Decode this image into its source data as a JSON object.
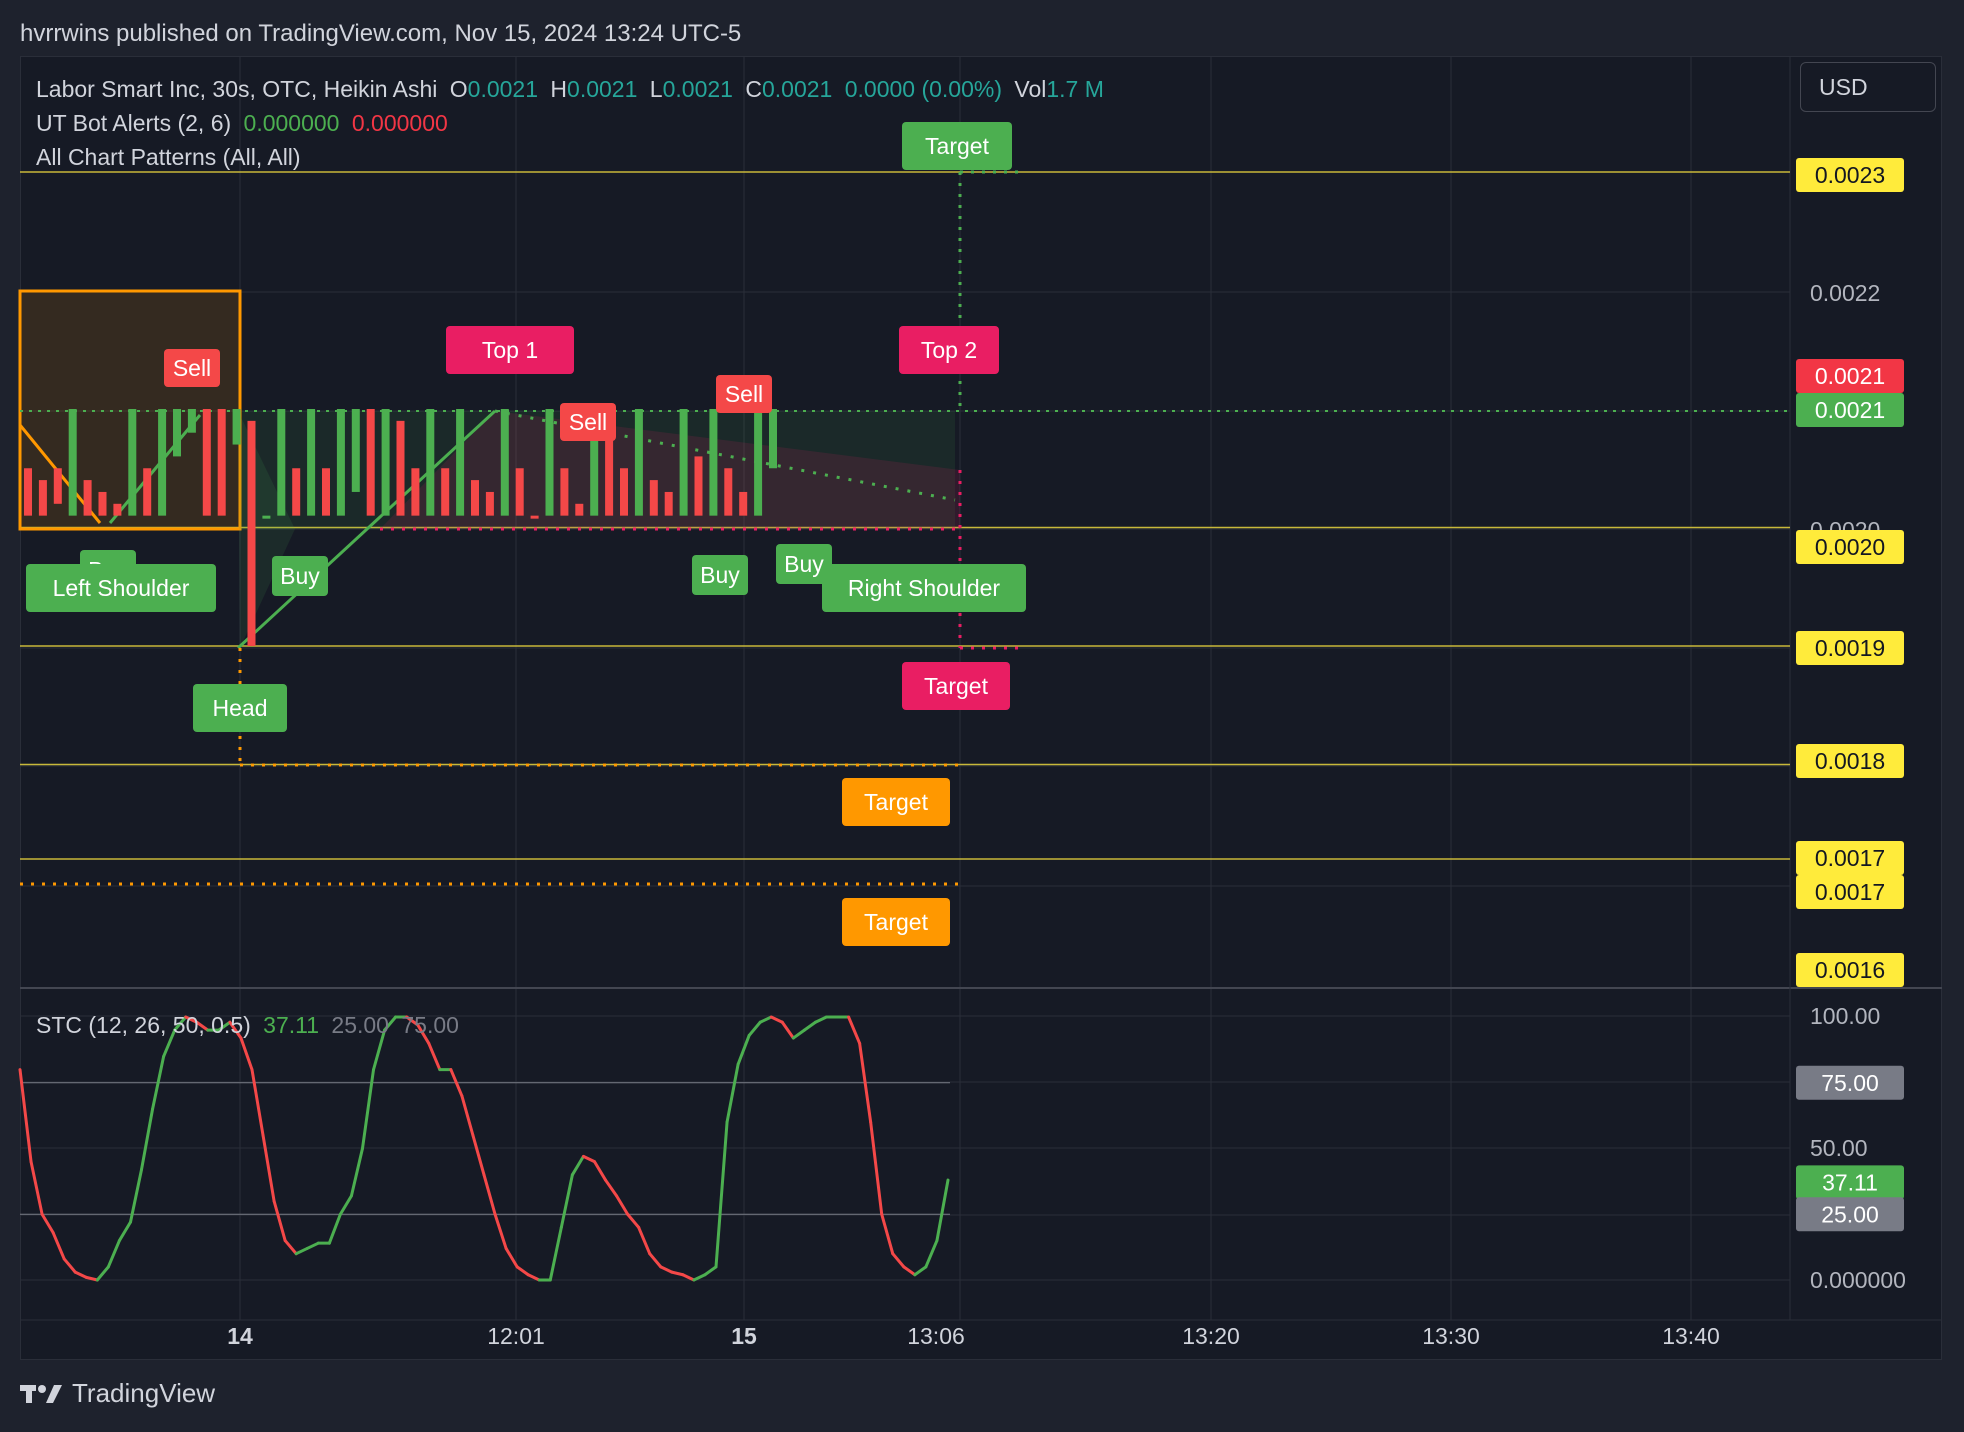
{
  "header": {
    "published": "hvrrwins published on TradingView.com, Nov 15, 2024 13:24 UTC-5"
  },
  "legend": {
    "symbol": "Labor Smart Inc, 30s, OTC, Heikin Ashi",
    "o_label": "O",
    "o_value": "0.0021",
    "h_label": "H",
    "h_value": "0.0021",
    "l_label": "L",
    "l_value": "0.0021",
    "c_label": "C",
    "c_value": "0.0021",
    "change": "0.0000 (0.00%)",
    "vol_label": "Vol",
    "vol_value": "1.7 M",
    "ut_name": "UT Bot Alerts (2, 6)",
    "ut_v1": "0.000000",
    "ut_v2": "0.000000",
    "patterns": "All Chart Patterns (All, All)",
    "stc_name": "STC (12, 26, 50, 0.5)",
    "stc_v1": "37.11",
    "stc_v2": "25.00",
    "stc_v3": "75.00"
  },
  "currency": "USD",
  "footer": {
    "brand": "TradingView"
  },
  "colors": {
    "up": "#4caf50",
    "down": "#f44848",
    "pattern_green": "#4caf50",
    "pattern_pink": "#e91e63",
    "pattern_orange": "#ff9800",
    "level_yellow": "#ffeb3b"
  },
  "chart_data": [
    {
      "type": "candlestick",
      "title": "Labor Smart Inc, 30s, OTC, Heikin Ashi",
      "x_tick_labels": [
        "14",
        "12:01",
        "15",
        "13:06",
        "13:20",
        "13:30",
        "13:40"
      ],
      "y_tick_labels": [
        "0.0022",
        "0.0020"
      ],
      "ylim": [
        0.00157,
        0.00237
      ],
      "candles": [
        {
          "i": 0,
          "o": 0.00205,
          "c": 0.00201,
          "d": "down"
        },
        {
          "i": 1,
          "o": 0.00204,
          "c": 0.00201,
          "d": "down"
        },
        {
          "i": 2,
          "o": 0.00205,
          "c": 0.00202,
          "d": "down"
        },
        {
          "i": 3,
          "o": 0.00201,
          "c": 0.0021,
          "d": "up"
        },
        {
          "i": 4,
          "o": 0.00204,
          "c": 0.00201,
          "d": "down"
        },
        {
          "i": 5,
          "o": 0.00203,
          "c": 0.00201,
          "d": "down"
        },
        {
          "i": 6,
          "o": 0.00202,
          "c": 0.00201,
          "d": "down"
        },
        {
          "i": 7,
          "o": 0.00201,
          "c": 0.0021,
          "d": "up"
        },
        {
          "i": 8,
          "o": 0.00205,
          "c": 0.00201,
          "d": "down"
        },
        {
          "i": 9,
          "o": 0.00201,
          "c": 0.0021,
          "d": "up"
        },
        {
          "i": 10,
          "o": 0.00206,
          "c": 0.0021,
          "d": "up"
        },
        {
          "i": 11,
          "o": 0.00208,
          "c": 0.0021,
          "d": "up"
        },
        {
          "i": 12,
          "o": 0.0021,
          "c": 0.00201,
          "d": "down"
        },
        {
          "i": 13,
          "o": 0.0021,
          "c": 0.00201,
          "d": "down"
        },
        {
          "i": 14,
          "o": 0.00207,
          "c": 0.0021,
          "d": "up"
        },
        {
          "i": 15,
          "o": 0.00209,
          "c": 0.0019,
          "d": "down"
        },
        {
          "i": 16,
          "o": 0.00201,
          "c": 0.00201,
          "d": "up"
        },
        {
          "i": 17,
          "o": 0.00201,
          "c": 0.0021,
          "d": "up"
        },
        {
          "i": 18,
          "o": 0.00205,
          "c": 0.00201,
          "d": "down"
        },
        {
          "i": 19,
          "o": 0.00201,
          "c": 0.0021,
          "d": "up"
        },
        {
          "i": 20,
          "o": 0.00205,
          "c": 0.00201,
          "d": "down"
        },
        {
          "i": 21,
          "o": 0.00201,
          "c": 0.0021,
          "d": "up"
        },
        {
          "i": 22,
          "o": 0.00203,
          "c": 0.0021,
          "d": "up"
        },
        {
          "i": 23,
          "o": 0.0021,
          "c": 0.00201,
          "d": "down"
        },
        {
          "i": 24,
          "o": 0.00201,
          "c": 0.0021,
          "d": "up"
        },
        {
          "i": 25,
          "o": 0.00209,
          "c": 0.00201,
          "d": "down"
        },
        {
          "i": 26,
          "o": 0.00205,
          "c": 0.00201,
          "d": "down"
        },
        {
          "i": 27,
          "o": 0.00201,
          "c": 0.0021,
          "d": "up"
        },
        {
          "i": 28,
          "o": 0.00205,
          "c": 0.00201,
          "d": "down"
        },
        {
          "i": 29,
          "o": 0.00201,
          "c": 0.0021,
          "d": "up"
        },
        {
          "i": 30,
          "o": 0.00204,
          "c": 0.00201,
          "d": "down"
        },
        {
          "i": 31,
          "o": 0.00203,
          "c": 0.00201,
          "d": "down"
        },
        {
          "i": 32,
          "o": 0.00201,
          "c": 0.0021,
          "d": "up"
        },
        {
          "i": 33,
          "o": 0.00205,
          "c": 0.00201,
          "d": "down"
        },
        {
          "i": 34,
          "o": 0.00201,
          "c": 0.00201,
          "d": "down"
        },
        {
          "i": 35,
          "o": 0.00201,
          "c": 0.0021,
          "d": "up"
        },
        {
          "i": 36,
          "o": 0.00205,
          "c": 0.00201,
          "d": "down"
        },
        {
          "i": 37,
          "o": 0.00202,
          "c": 0.00201,
          "d": "down"
        },
        {
          "i": 38,
          "o": 0.00201,
          "c": 0.0021,
          "d": "up"
        },
        {
          "i": 39,
          "o": 0.0021,
          "c": 0.00201,
          "d": "down"
        },
        {
          "i": 40,
          "o": 0.00205,
          "c": 0.00201,
          "d": "down"
        },
        {
          "i": 41,
          "o": 0.00201,
          "c": 0.0021,
          "d": "up"
        },
        {
          "i": 42,
          "o": 0.00204,
          "c": 0.00201,
          "d": "down"
        },
        {
          "i": 43,
          "o": 0.00203,
          "c": 0.00201,
          "d": "down"
        },
        {
          "i": 44,
          "o": 0.00201,
          "c": 0.0021,
          "d": "up"
        },
        {
          "i": 45,
          "o": 0.00206,
          "c": 0.00201,
          "d": "down"
        },
        {
          "i": 46,
          "o": 0.00201,
          "c": 0.0021,
          "d": "up"
        },
        {
          "i": 47,
          "o": 0.00205,
          "c": 0.00201,
          "d": "down"
        },
        {
          "i": 48,
          "o": 0.00203,
          "c": 0.00201,
          "d": "down"
        },
        {
          "i": 49,
          "o": 0.00201,
          "c": 0.0021,
          "d": "up"
        },
        {
          "i": 50,
          "o": 0.00205,
          "c": 0.0021,
          "d": "up"
        }
      ],
      "price_labels": [
        {
          "value": "0.0023",
          "color": "#ffeb3b"
        },
        {
          "value": "0.0021",
          "color": "#f23645"
        },
        {
          "value": "0.0021",
          "color": "#4caf50"
        },
        {
          "value": "0.0020",
          "color": "#ffeb3b"
        },
        {
          "value": "0.0019",
          "color": "#ffeb3b"
        },
        {
          "value": "0.0018",
          "color": "#ffeb3b"
        },
        {
          "value": "0.0017",
          "color": "#ffeb3b"
        },
        {
          "value": "0.0017",
          "color": "#ffeb3b"
        },
        {
          "value": "0.0016",
          "color": "#ffeb3b"
        }
      ],
      "annotations": [
        "Target",
        "Top 1",
        "Top 2",
        "Sell",
        "Sell",
        "Sell",
        "Buy",
        "Buy",
        "Buy",
        "Buy",
        "Left Shoulder",
        "Right Shoulder",
        "Head",
        "Target",
        "Target",
        "Target"
      ]
    },
    {
      "type": "line",
      "title": "STC (12, 26, 50, 0.5)",
      "ylim": [
        0,
        100
      ],
      "y_tick_labels": [
        "100.00",
        "50.00",
        "0.000000"
      ],
      "levels": [
        {
          "value": "75.00",
          "color": "#787b86"
        },
        {
          "value": "37.11",
          "color": "#4caf50"
        },
        {
          "value": "25.00",
          "color": "#787b86"
        }
      ],
      "series": [
        {
          "values": [
            80,
            45,
            25,
            18,
            8,
            3,
            1,
            0,
            5,
            15,
            22,
            42,
            65,
            85,
            95,
            100,
            98,
            95,
            95,
            98,
            92,
            80,
            55,
            30,
            15,
            10,
            12,
            14,
            14,
            25,
            32,
            50,
            80,
            95,
            100,
            100,
            97,
            90,
            80,
            80,
            70,
            55,
            40,
            25,
            12,
            5,
            2,
            0,
            0,
            20,
            40,
            47,
            45,
            38,
            32,
            25,
            20,
            10,
            5,
            3,
            2,
            0,
            2,
            5,
            60,
            82,
            93,
            98,
            100,
            98,
            92,
            95,
            98,
            100,
            100,
            100,
            90,
            60,
            25,
            10,
            5,
            2,
            5,
            15,
            38
          ]
        }
      ]
    }
  ]
}
